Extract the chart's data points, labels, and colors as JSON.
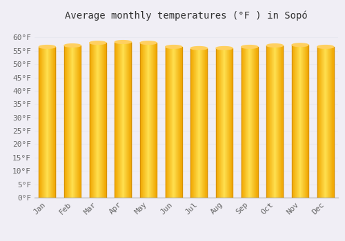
{
  "title": "Average monthly temperatures (°F ) in Sopó",
  "months": [
    "Jan",
    "Feb",
    "Mar",
    "Apr",
    "May",
    "Jun",
    "Jul",
    "Aug",
    "Sep",
    "Oct",
    "Nov",
    "Dec"
  ],
  "temperatures": [
    56.5,
    57.0,
    58.0,
    58.3,
    58.0,
    56.5,
    56.0,
    56.0,
    56.5,
    57.0,
    57.2,
    56.5
  ],
  "bar_color_center": "#FFD966",
  "bar_color_edge": "#F0A500",
  "background_color": "#f0eef5",
  "grid_color": "#e8e8f0",
  "ylim": [
    0,
    65
  ],
  "yticks": [
    0,
    5,
    10,
    15,
    20,
    25,
    30,
    35,
    40,
    45,
    50,
    55,
    60
  ],
  "ytick_labels": [
    "0°F",
    "5°F",
    "10°F",
    "15°F",
    "20°F",
    "25°F",
    "30°F",
    "35°F",
    "40°F",
    "45°F",
    "50°F",
    "55°F",
    "60°F"
  ],
  "title_fontsize": 10,
  "tick_fontsize": 8,
  "bar_width": 0.65
}
